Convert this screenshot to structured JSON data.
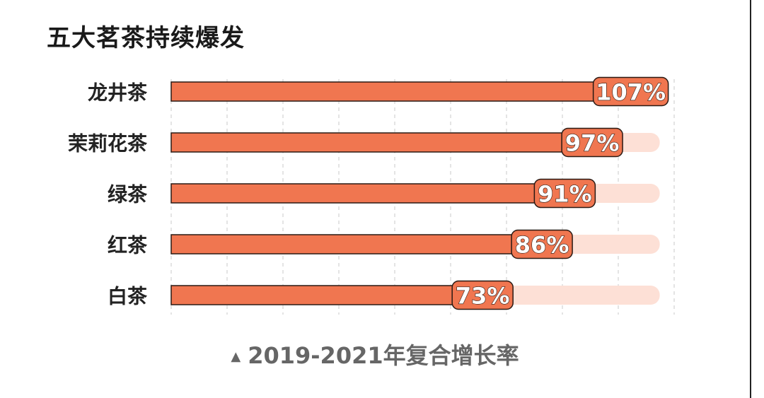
{
  "title": "五大茗茶持续爆发",
  "footer": {
    "marker": "▲",
    "text": "2019-2021年复合增长率"
  },
  "colors": {
    "bar": "#f07650",
    "track": "#fde0d6",
    "outline": "#2a1a14",
    "label_text": "#ffffff",
    "category_text": "#222222",
    "grid": "#c8c8c8"
  },
  "chart_data": {
    "type": "bar",
    "orientation": "horizontal",
    "categories": [
      "龙井茶",
      "茉莉花茶",
      "绿茶",
      "红茶",
      "白茶"
    ],
    "values": [
      107,
      97,
      91,
      86,
      73
    ],
    "data_labels": [
      "107%",
      "97%",
      "91%",
      "86%",
      "73%"
    ],
    "unit": "%",
    "xlim": [
      0,
      110
    ],
    "track_max": 107,
    "grid": true,
    "title": "五大茗茶持续爆发",
    "xlabel": "2019-2021年复合增长率",
    "ylabel": ""
  }
}
